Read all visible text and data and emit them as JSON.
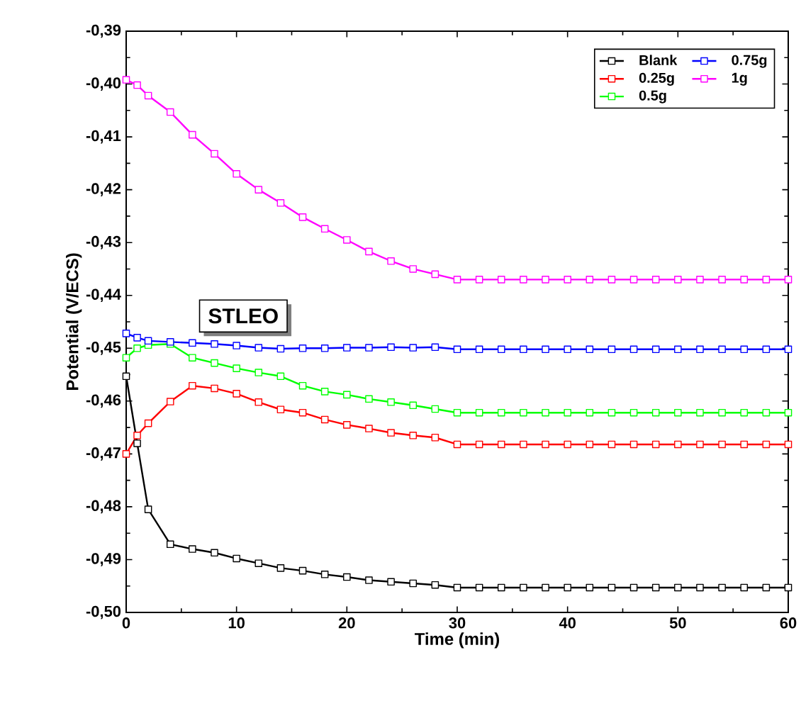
{
  "chart_data": {
    "type": "line",
    "xlabel": "Time (min)",
    "ylabel": "Potential (V/ECS)",
    "annotations": [
      "STLEO"
    ],
    "x": [
      0,
      1,
      2,
      4,
      6,
      8,
      10,
      12,
      14,
      16,
      18,
      20,
      22,
      24,
      26,
      28,
      30,
      32,
      34,
      36,
      38,
      40,
      42,
      44,
      46,
      48,
      50,
      52,
      54,
      56,
      58,
      60
    ],
    "series": [
      {
        "name": "Blank",
        "color": "#000000",
        "values": [
          -0.4553,
          -0.468,
          -0.4805,
          -0.4871,
          -0.488,
          -0.4887,
          -0.4898,
          -0.4907,
          -0.4916,
          -0.4921,
          -0.4928,
          -0.4933,
          -0.4939,
          -0.4942,
          -0.4945,
          -0.4948,
          -0.4953,
          -0.4953,
          -0.4953,
          -0.4953,
          -0.4953,
          -0.4953,
          -0.4953,
          -0.4953,
          -0.4953,
          -0.4953,
          -0.4953,
          -0.4953,
          -0.4953,
          -0.4953,
          -0.4953,
          -0.4953
        ]
      },
      {
        "name": "0.25g",
        "color": "#ff0000",
        "values": [
          -0.47,
          -0.4665,
          -0.4642,
          -0.4601,
          -0.4571,
          -0.4576,
          -0.4586,
          -0.4602,
          -0.4616,
          -0.4622,
          -0.4635,
          -0.4645,
          -0.4652,
          -0.466,
          -0.4665,
          -0.4669,
          -0.4682,
          -0.4682,
          -0.4682,
          -0.4682,
          -0.4682,
          -0.4682,
          -0.4682,
          -0.4682,
          -0.4682,
          -0.4682,
          -0.4682,
          -0.4682,
          -0.4682,
          -0.4682,
          -0.4682,
          -0.4682
        ]
      },
      {
        "name": "0.5g",
        "color": "#00ff00",
        "values": [
          -0.4518,
          -0.45,
          -0.4494,
          -0.4492,
          -0.4518,
          -0.4528,
          -0.4538,
          -0.4546,
          -0.4553,
          -0.4571,
          -0.4582,
          -0.4588,
          -0.4596,
          -0.4602,
          -0.4608,
          -0.4615,
          -0.4622,
          -0.4622,
          -0.4622,
          -0.4622,
          -0.4622,
          -0.4622,
          -0.4622,
          -0.4622,
          -0.4622,
          -0.4622,
          -0.4622,
          -0.4622,
          -0.4622,
          -0.4622,
          -0.4622,
          -0.4622
        ]
      },
      {
        "name": "0.75g",
        "color": "#0000ff",
        "values": [
          -0.4472,
          -0.448,
          -0.4486,
          -0.4488,
          -0.449,
          -0.4492,
          -0.4495,
          -0.4499,
          -0.4501,
          -0.45,
          -0.45,
          -0.4499,
          -0.4499,
          -0.4498,
          -0.4499,
          -0.4498,
          -0.4502,
          -0.4502,
          -0.4502,
          -0.4502,
          -0.4502,
          -0.4502,
          -0.4502,
          -0.4502,
          -0.4502,
          -0.4502,
          -0.4502,
          -0.4502,
          -0.4502,
          -0.4502,
          -0.4502,
          -0.4502
        ]
      },
      {
        "name": "1g",
        "color": "#ff00ff",
        "values": [
          -0.3992,
          -0.4002,
          -0.4022,
          -0.4053,
          -0.4096,
          -0.4132,
          -0.417,
          -0.42,
          -0.4225,
          -0.4252,
          -0.4274,
          -0.4295,
          -0.4317,
          -0.4335,
          -0.435,
          -0.436,
          -0.437,
          -0.437,
          -0.437,
          -0.437,
          -0.437,
          -0.437,
          -0.437,
          -0.437,
          -0.437,
          -0.437,
          -0.437,
          -0.437,
          -0.437,
          -0.437,
          -0.437,
          -0.437
        ]
      }
    ],
    "xlim": [
      0,
      60
    ],
    "xticks": [
      0,
      10,
      20,
      30,
      40,
      50,
      60
    ],
    "ylim": [
      -0.5,
      -0.39
    ],
    "yticks": [
      {
        "value": -0.5,
        "label": "-0,50"
      },
      {
        "value": -0.49,
        "label": "-0,49"
      },
      {
        "value": -0.48,
        "label": "-0,48"
      },
      {
        "value": -0.47,
        "label": "-0,47"
      },
      {
        "value": -0.46,
        "label": "-0,46"
      },
      {
        "value": -0.45,
        "label": "-0,45"
      },
      {
        "value": -0.44,
        "label": "-0,44"
      },
      {
        "value": -0.43,
        "label": "-0,43"
      },
      {
        "value": -0.42,
        "label": "-0,42"
      },
      {
        "value": -0.41,
        "label": "-0,41"
      },
      {
        "value": -0.4,
        "label": "-0,40"
      },
      {
        "value": -0.39,
        "label": "-0,39"
      }
    ],
    "legend": "top right",
    "marker": "square",
    "line_style": "solid",
    "grid": false
  }
}
